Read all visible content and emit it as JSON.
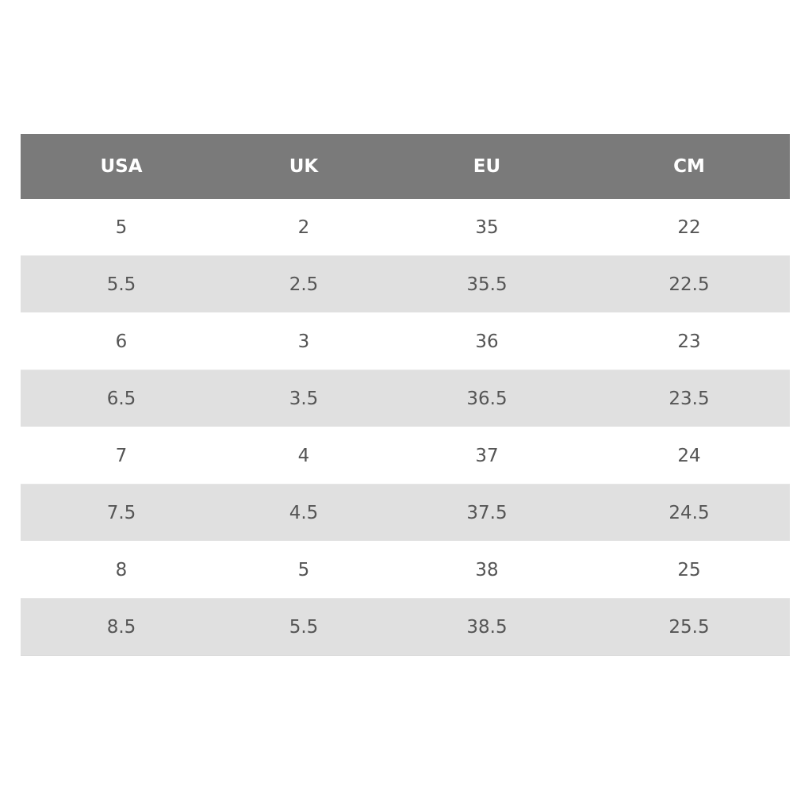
{
  "size_chart": {
    "headers": [
      "USA",
      "UK",
      "EU",
      "CM"
    ],
    "rows": [
      [
        "5",
        "2",
        "35",
        "22"
      ],
      [
        "5.5",
        "2.5",
        "35.5",
        "22.5"
      ],
      [
        "6",
        "3",
        "36",
        "23"
      ],
      [
        "6.5",
        "3.5",
        "36.5",
        "23.5"
      ],
      [
        "7",
        "4",
        "37",
        "24"
      ],
      [
        "7.5",
        "4.5",
        "37.5",
        "24.5"
      ],
      [
        "8",
        "5",
        "38",
        "25"
      ],
      [
        "8.5",
        "5.5",
        "38.5",
        "25.5"
      ]
    ],
    "colors": {
      "header_bg": "#7a7a7a",
      "header_text": "#ffffff",
      "stripe_bg": "#e0e0e0",
      "cell_text": "#555555"
    }
  }
}
